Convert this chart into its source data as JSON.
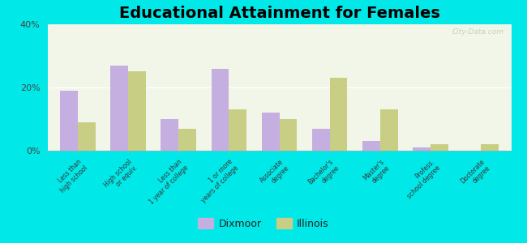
{
  "title": "Educational Attainment for Females",
  "categories": [
    "Less than\nhigh school",
    "High school\nor equiv.",
    "Less than\n1 year of college",
    "1 or more\nyears of college",
    "Associate\ndegree",
    "Bachelor's\ndegree",
    "Master's\ndegree",
    "Profess.\nschool degree",
    "Doctorate\ndegree"
  ],
  "dixmoor": [
    19,
    27,
    10,
    26,
    12,
    7,
    3,
    1,
    0
  ],
  "illinois": [
    9,
    25,
    7,
    13,
    10,
    23,
    13,
    2,
    2
  ],
  "dixmoor_color": "#c5aee0",
  "illinois_color": "#c8cf84",
  "background_color": "#f0f5e0",
  "outer_background": "#00e8e8",
  "ylim": [
    0,
    40
  ],
  "yticks": [
    0,
    20,
    40
  ],
  "ytick_labels": [
    "0%",
    "20%",
    "40%"
  ],
  "bar_width": 0.35,
  "legend_labels": [
    "Dixmoor",
    "Illinois"
  ],
  "title_fontsize": 14,
  "watermark": "City-Data.com"
}
